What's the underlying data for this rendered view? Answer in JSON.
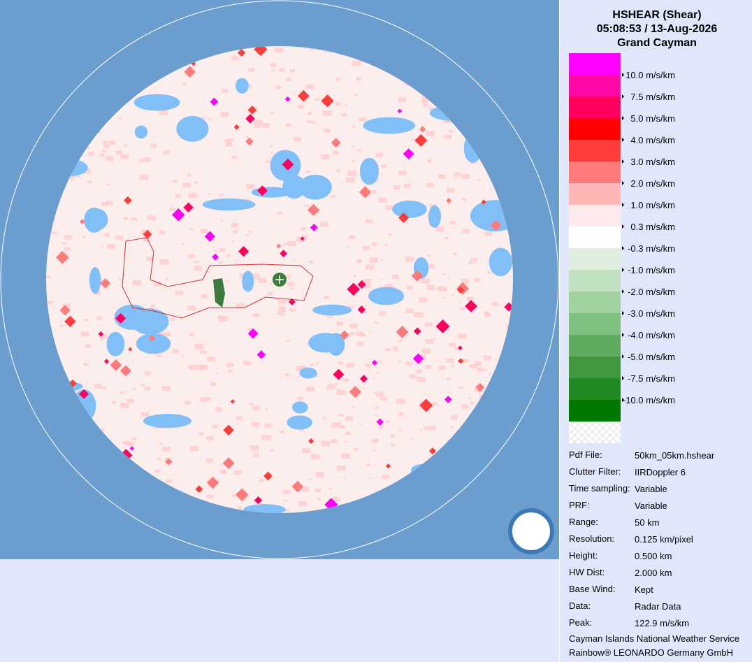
{
  "header": {
    "title": "HSHEAR (Shear)",
    "datetime": "05:08:53 / 13-Aug-2026",
    "site": "Grand Cayman"
  },
  "legend": [
    {
      "color": "#ff00ff",
      "label": "10.0 m/s/km"
    },
    {
      "color": "#ff0aa8",
      "label": "7.5 m/s/km"
    },
    {
      "color": "#ff0060",
      "label": "5.0 m/s/km"
    },
    {
      "color": "#ff0000",
      "label": "4.0 m/s/km"
    },
    {
      "color": "#ff3c3c",
      "label": "3.0 m/s/km"
    },
    {
      "color": "#ff7a7a",
      "label": "2.0 m/s/km"
    },
    {
      "color": "#ffb6b6",
      "label": "1.0 m/s/km"
    },
    {
      "color": "#fde9e9",
      "label": "0.3 m/s/km"
    },
    {
      "color": "#ffffff",
      "label": "-0.3 m/s/km"
    },
    {
      "color": "#dfeedf",
      "label": "-1.0 m/s/km"
    },
    {
      "color": "#c0e0c0",
      "label": "-2.0 m/s/km"
    },
    {
      "color": "#a0d2a0",
      "label": "-3.0 m/s/km"
    },
    {
      "color": "#80c080",
      "label": "-4.0 m/s/km"
    },
    {
      "color": "#60ab60",
      "label": "-5.0 m/s/km"
    },
    {
      "color": "#409840",
      "label": "-7.5 m/s/km"
    },
    {
      "color": "#208a20",
      "label": "-10.0 m/s/km"
    },
    {
      "color": "#007800"
    }
  ],
  "info": [
    [
      "Pdf File:",
      "50km_05km.hshear"
    ],
    [
      "Clutter Filter:",
      "IIRDoppler 6"
    ],
    [
      "Time sampling:",
      "Variable"
    ],
    [
      "PRF:",
      "Variable"
    ],
    [
      "Range:",
      "50 km"
    ],
    [
      "Resolution:",
      "0.125 km/pixel"
    ],
    [
      "Height:",
      "0.500 km"
    ],
    [
      "HW Dist:",
      "2.000 km"
    ],
    [
      "Base Wind:",
      "Kept"
    ],
    [
      "Data:",
      "Radar Data"
    ],
    [
      "Peak:",
      "122.9 m/s/km"
    ]
  ],
  "footer": [
    "Cayman Islands National Weather Service",
    "Rainbow® LEONARDO Germany GmbH"
  ]
}
